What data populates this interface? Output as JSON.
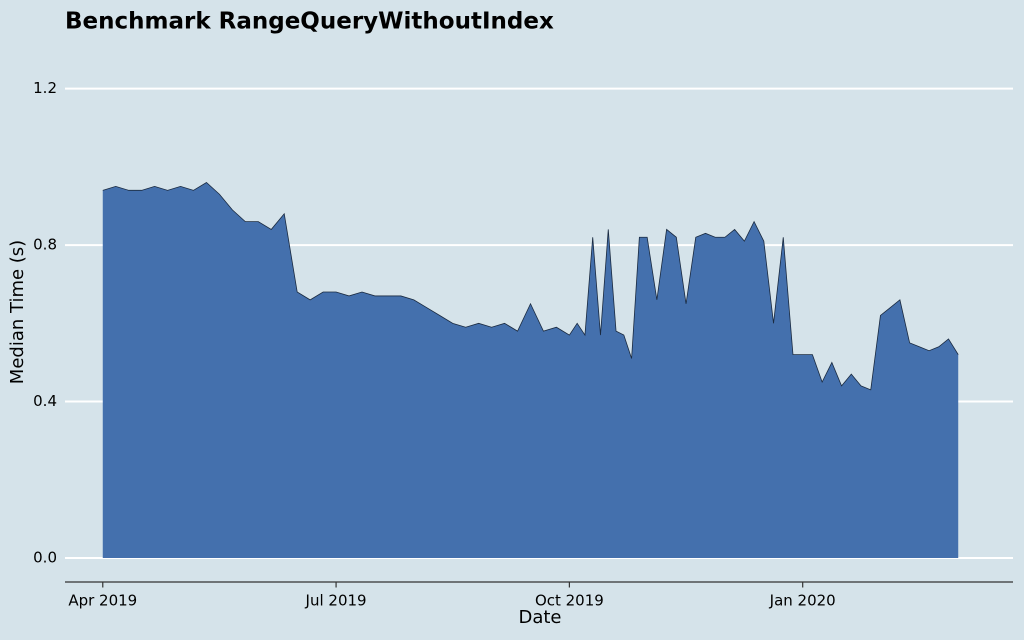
{
  "chart_data": {
    "type": "area",
    "title": "Benchmark RangeQueryWithoutIndex",
    "xlabel": "Date",
    "ylabel": "Median Time (s)",
    "x": [
      "2019-04",
      "2019-04",
      "2019-04",
      "2019-04",
      "2019-04",
      "2019-04",
      "2019-05",
      "2019-05",
      "2019-05",
      "2019-05",
      "2019-05",
      "2019-05",
      "2019-06",
      "2019-06",
      "2019-06",
      "2019-06",
      "2019-06",
      "2019-06",
      "2019-07",
      "2019-07",
      "2019-07",
      "2019-07",
      "2019-07",
      "2019-07",
      "2019-08",
      "2019-08",
      "2019-08",
      "2019-08",
      "2019-08",
      "2019-08",
      "2019-09",
      "2019-09",
      "2019-09",
      "2019-09",
      "2019-09",
      "2019-09",
      "2019-10",
      "2019-10",
      "2019-10",
      "2019-10",
      "2019-10",
      "2019-10",
      "2019-10",
      "2019-10",
      "2019-10",
      "2019-10",
      "2019-11",
      "2019-11",
      "2019-11",
      "2019-11",
      "2019-11",
      "2019-11",
      "2019-11",
      "2019-11",
      "2019-12",
      "2019-12",
      "2019-12",
      "2019-12",
      "2019-12",
      "2019-12",
      "2019-12",
      "2019-12",
      "2020-01",
      "2020-01",
      "2020-01",
      "2020-01",
      "2020-01",
      "2020-01",
      "2020-01",
      "2020-01",
      "2020-02",
      "2020-02",
      "2020-02",
      "2020-02",
      "2020-02",
      "2020-02",
      "2020-02",
      "2020-02",
      "2020-03"
    ],
    "series": [
      {
        "name": "Median Time",
        "color": "#4470ad",
        "line_color": "#1a2a40",
        "values": [
          0.94,
          0.95,
          0.94,
          0.94,
          0.95,
          0.94,
          0.95,
          0.94,
          0.96,
          0.93,
          0.89,
          0.86,
          0.86,
          0.84,
          0.88,
          0.68,
          0.66,
          0.68,
          0.68,
          0.67,
          0.68,
          0.67,
          0.67,
          0.67,
          0.66,
          0.64,
          0.62,
          0.6,
          0.59,
          0.6,
          0.59,
          0.6,
          0.58,
          0.65,
          0.58,
          0.59,
          0.57,
          0.6,
          0.57,
          0.82,
          0.57,
          0.84,
          0.58,
          0.57,
          0.51,
          0.82,
          0.82,
          0.66,
          0.84,
          0.82,
          0.65,
          0.82,
          0.83,
          0.82,
          0.82,
          0.84,
          0.81,
          0.86,
          0.81,
          0.6,
          0.82,
          0.52,
          0.52,
          0.52,
          0.45,
          0.5,
          0.44,
          0.47,
          0.44,
          0.43,
          0.62,
          0.64,
          0.66,
          0.55,
          0.54,
          0.53,
          0.54,
          0.56,
          0.52
        ]
      }
    ],
    "xlim": [
      "2019-03",
      "2020-04"
    ],
    "xticks": [
      {
        "value": "2019-04",
        "label": "Apr 2019"
      },
      {
        "value": "2019-07",
        "label": "Jul 2019"
      },
      {
        "value": "2019-10",
        "label": "Oct 2019"
      },
      {
        "value": "2020-01",
        "label": "Jan 2020"
      }
    ],
    "ylim": [
      -0.06,
      1.3
    ],
    "yticks": [
      {
        "value": 0,
        "label": "0.0"
      },
      0.4,
      0.8,
      1.2
    ],
    "grid": true
  }
}
